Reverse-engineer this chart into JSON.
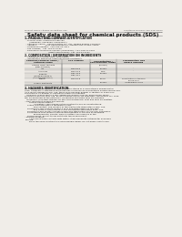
{
  "bg_color": "#f0ede8",
  "header_top_left": "Product Name: Lithium Ion Battery Cell",
  "header_top_right_line1": "Substance Number: SRP-049-00610",
  "header_top_right_line2": "Established / Revision: Dec.7.2010",
  "title": "Safety data sheet for chemical products (SDS)",
  "section1_title": "1. PRODUCT AND COMPANY IDENTIFICATION",
  "section1_lines": [
    "  - Product name: Lithium Ion Battery Cell",
    "  - Product code: Cylindrical-type cell",
    "       (IHR86650, IHR18650, IHR18650A)",
    "  - Company name:   Sanyo Electric Co., Ltd., Mobile Energy Company",
    "  - Address:            2001 Kamikosakacho, Sumoto-City, Hyogo, Japan",
    "  - Telephone number:  +81-799-24-4111",
    "  - Fax number:  +81-799-24-4120",
    "  - Emergency telephone number (Weekdays): +81-799-24-3842",
    "                                   (Night and holiday): +81-799-24-4101"
  ],
  "section2_title": "2. COMPOSITION / INFORMATION ON INGREDIENTS",
  "section2_sub": "  - Substance or preparation: Preparation",
  "section2_sub2": "  - Information about the chemical nature of product:",
  "table_col_headers": [
    "Chemical/chemical name /\nChemical name",
    "CAS number",
    "Concentration /\nConcentration range",
    "Classification and\nhazard labeling"
  ],
  "table_rows": [
    [
      "Lithium cobalt tantalite\n(LiMn-Co-PBO4)",
      "-",
      "(50-80%)",
      ""
    ],
    [
      "Iron",
      "7439-89-6",
      "16-25%",
      "-"
    ],
    [
      "Aluminum",
      "7429-90-5",
      "2-8%",
      "-"
    ],
    [
      "Graphite\n(Mined graphite-1)\n(Air-flow graphite-1)",
      "7782-42-5\n7782-44-7",
      "10-25%",
      ""
    ],
    [
      "Copper",
      "7440-50-8",
      "5-15%",
      "Sensitization of the skin\ngroup No.2"
    ],
    [
      "Organic electrolyte",
      "-",
      "10-20%",
      "Inflammable liquid"
    ]
  ],
  "section3_title": "3. HAZARDS IDENTIFICATION",
  "section3_para1": "For the battery cell, chemical materials are stored in a hermetically sealed metal case, designed to withstand temperatures or pressures encountered during normal use. As a result, during normal use, there is no physical danger of ignition or explosion and there is no danger of hazardous materials leakage.",
  "section3_para2": "   However, if exposed to a fire, added mechanical shocks, decompose, when electrolyte battery may use. By gas release cannot be operated. The battery cell case will be breached at the extremes. Hazardous materials may be released.",
  "section3_para3": "   Moreover, if heated strongly by the surrounding fire, soot gas may be emitted.",
  "section3_bullet1_title": "- Most important hazard and effects:",
  "section3_human": "     Human health effects:",
  "section3_inhal": "         Inhalation: The release of the electrolyte has an anesthetizing action and stimulates a respiratory tract.",
  "section3_skin": "         Skin contact: The release of the electrolyte stimulates a skin. The electrolyte skin contact causes a sore and stimulation on the skin.",
  "section3_eye": "         Eye contact: The release of the electrolyte stimulates eyes. The electrolyte eye contact causes a sore and stimulation on the eye. Especially, a substance that causes a strong inflammation of the eye is contained.",
  "section3_env_title": "         Environmental effects: Since a battery cell remains in the environment, do not throw out it into the environment.",
  "section3_bullet2_title": "- Specific hazards:",
  "section3_specific1": "     If the electrolyte contacts with water, it will generate detrimental hydrogen fluoride.",
  "section3_specific2": "     Since the used electrolyte is inflammable liquid, do not bring close to fire."
}
